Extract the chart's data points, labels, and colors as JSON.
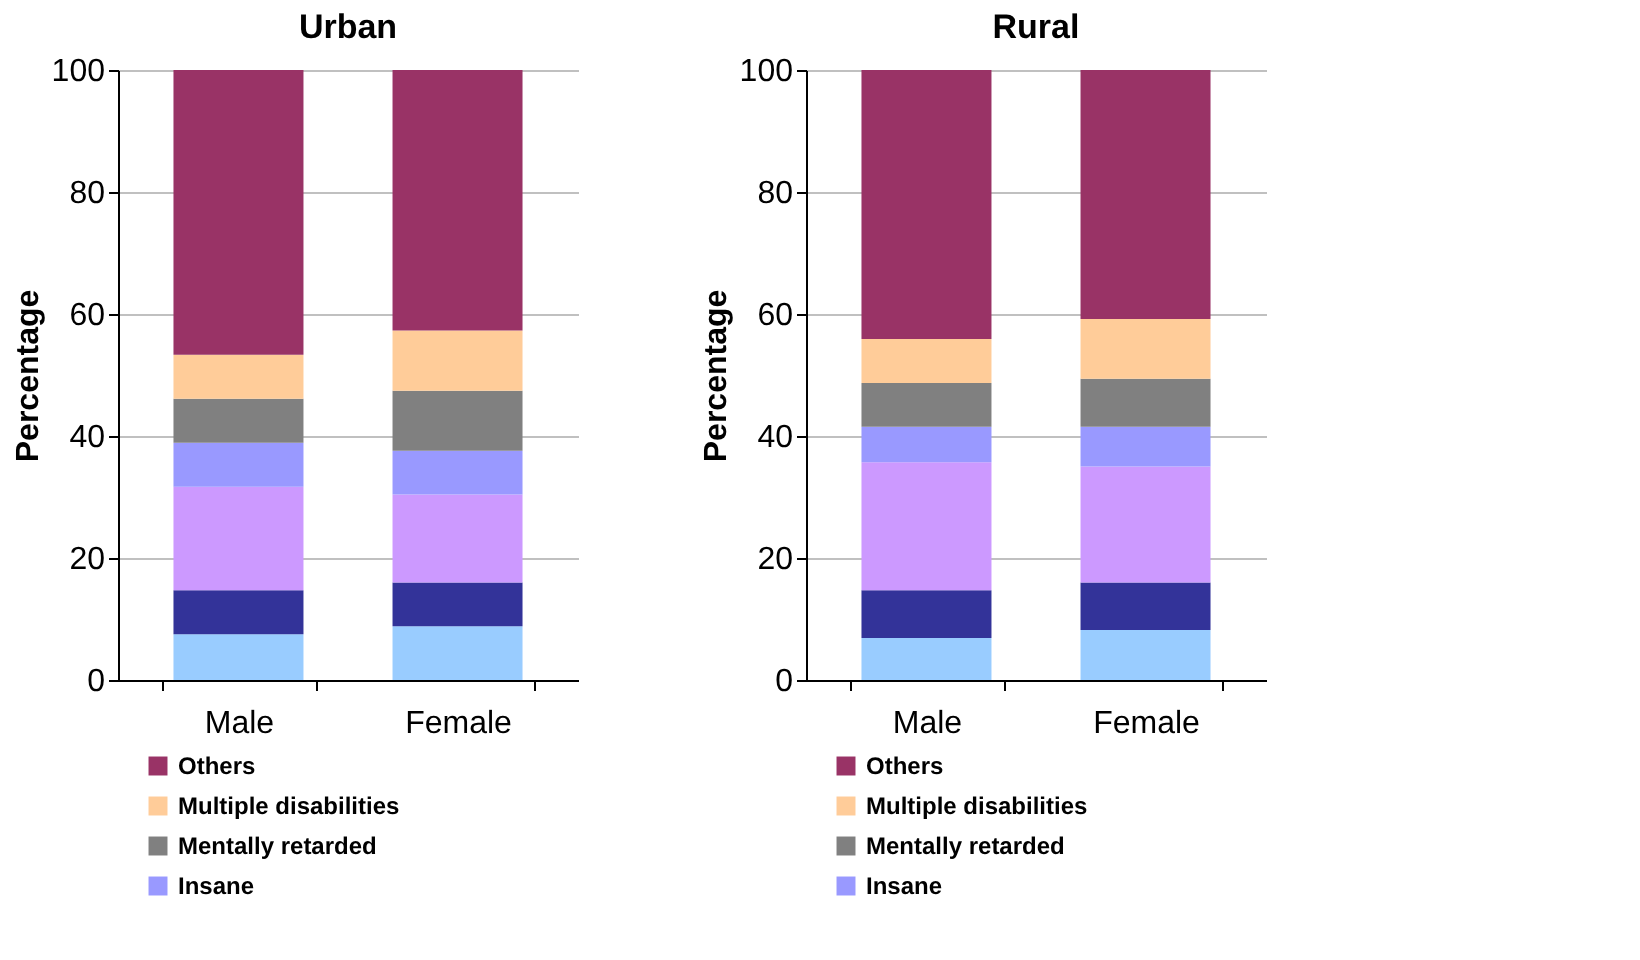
{
  "chart_data": [
    {
      "type": "bar",
      "title": "Urban",
      "ylabel": "Percentage",
      "categories": [
        "Male",
        "Female"
      ],
      "stacked": true,
      "ylim": [
        0,
        100
      ],
      "yticks": [
        0,
        20,
        40,
        60,
        80,
        100
      ],
      "grid": "y",
      "legend": "bottom",
      "series": [
        {
          "color": "#99ccff",
          "values": [
            7.5,
            8.8
          ]
        },
        {
          "color": "#333399",
          "values": [
            7.2,
            7.2
          ]
        },
        {
          "color": "#cc99ff",
          "values": [
            17.0,
            14.4
          ]
        },
        {
          "name": "Insane",
          "color": "#9999ff",
          "values": [
            7.2,
            7.2
          ]
        },
        {
          "name": "Mentally retarded",
          "color": "#808080",
          "values": [
            7.2,
            9.8
          ]
        },
        {
          "name": "Multiple disabilities",
          "color": "#ffcc99",
          "values": [
            7.2,
            9.9
          ]
        },
        {
          "name": "Others",
          "color": "#993366",
          "values": [
            46.7,
            42.7
          ]
        }
      ]
    },
    {
      "type": "bar",
      "title": "Rural",
      "ylabel": "Percentage",
      "categories": [
        "Male",
        "Female"
      ],
      "stacked": true,
      "ylim": [
        0,
        100
      ],
      "yticks": [
        0,
        20,
        40,
        60,
        80,
        100
      ],
      "grid": "y",
      "legend": "bottom",
      "series": [
        {
          "color": "#99ccff",
          "values": [
            6.9,
            8.2
          ]
        },
        {
          "color": "#333399",
          "values": [
            7.8,
            7.8
          ]
        },
        {
          "color": "#cc99ff",
          "values": [
            21.0,
            19.0
          ]
        },
        {
          "name": "Insane",
          "color": "#9999ff",
          "values": [
            5.8,
            6.5
          ]
        },
        {
          "name": "Mentally retarded",
          "color": "#808080",
          "values": [
            7.2,
            7.9
          ]
        },
        {
          "name": "Multiple disabilities",
          "color": "#ffcc99",
          "values": [
            7.2,
            9.8
          ]
        },
        {
          "name": "Others",
          "color": "#993366",
          "values": [
            44.1,
            40.8
          ]
        }
      ]
    }
  ]
}
